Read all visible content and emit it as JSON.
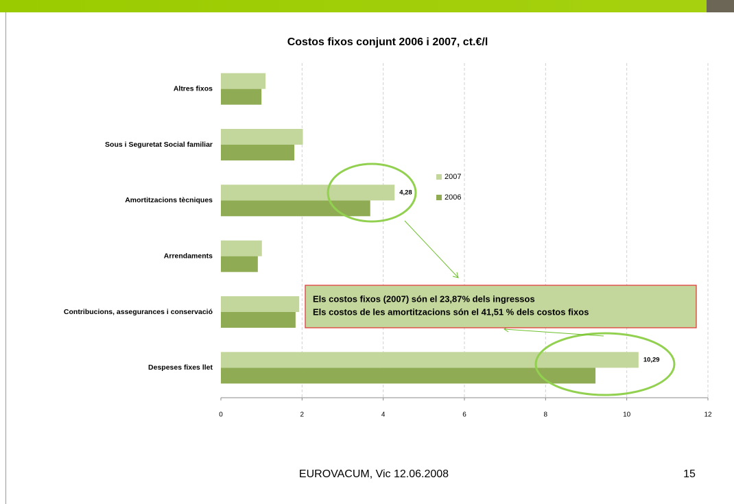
{
  "chart_data": {
    "type": "bar",
    "orientation": "horizontal",
    "title": "Costos  fixos conjunt 2006 i 2007, ct.€/l",
    "categories": [
      "Altres fixos",
      "Sous i Seguretat Social  familiar",
      "Amortitzacions tècniques",
      "Arrendaments",
      "Contribucions, assegurances  i conservació",
      "Despeses fixes llet"
    ],
    "series": [
      {
        "name": "2007",
        "color": "#c3d69b",
        "values": [
          1.1,
          2.02,
          4.28,
          1.01,
          1.93,
          10.29
        ],
        "value_labels": [
          null,
          null,
          "4,28",
          null,
          null,
          "10,29"
        ]
      },
      {
        "name": "2006",
        "color": "#8fac55",
        "values": [
          1.0,
          1.81,
          3.68,
          0.91,
          1.84,
          9.23
        ]
      }
    ],
    "xlim": [
      0,
      12
    ],
    "xticks": [
      0,
      2,
      4,
      6,
      8,
      10,
      12
    ],
    "grid": true,
    "legend": "center",
    "annotations": [
      "Els costos fixos (2007) són el 23,87% dels ingressos",
      "Els costos de les amortitzacions són el 41,51  % dels costos fixos"
    ]
  },
  "footer": {
    "text": "EUROVACUM, Vic 12.06.2008",
    "page": "15"
  }
}
